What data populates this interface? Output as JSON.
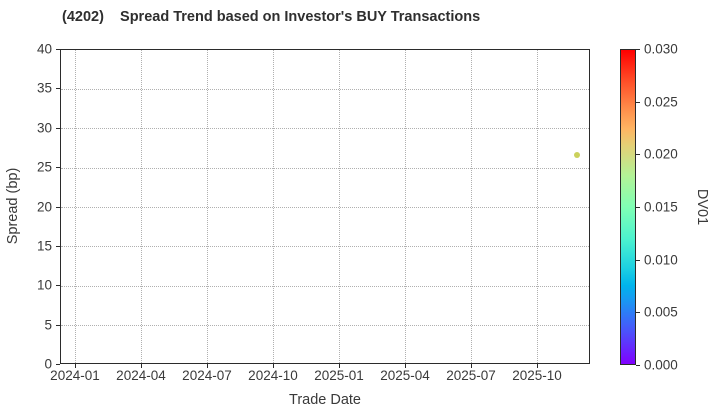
{
  "chart_data": {
    "type": "scatter",
    "title": "(4202)    Spread Trend based on Investor's BUY Transactions",
    "xlabel": "Trade Date",
    "ylabel": "Spread (bp)",
    "x_axis": {
      "tick_labels": [
        "2024-01",
        "2024-04",
        "2024-07",
        "2024-10",
        "2025-01",
        "2025-04",
        "2025-07",
        "2025-10"
      ],
      "tick_months": [
        0,
        3,
        6,
        9,
        12,
        15,
        18,
        21
      ],
      "lim_months": [
        -0.68,
        23.41
      ]
    },
    "y_axis": {
      "ticks": [
        0,
        5,
        10,
        15,
        20,
        25,
        30,
        35,
        40
      ],
      "lim": [
        0,
        40
      ]
    },
    "grid": {
      "show": true,
      "style": "dotted",
      "color": "#b0b0b0"
    },
    "legend": "none",
    "points": [
      {
        "trade_date": "2025-11",
        "x_month": 22.77,
        "spread_bp": 26.7,
        "dv01": 0.019,
        "color": "#cbd15c"
      }
    ],
    "colorbar": {
      "label": "DV01",
      "lim": [
        0.0,
        0.03
      ],
      "tick_values": [
        0.0,
        0.005,
        0.01,
        0.015,
        0.02,
        0.025,
        0.03
      ],
      "tick_labels": [
        "0.000",
        "0.005",
        "0.010",
        "0.015",
        "0.020",
        "0.025",
        "0.030"
      ],
      "colormap": "rainbow",
      "gradient_stops": [
        [
          0,
          "#8000ff"
        ],
        [
          10,
          "#4d4ffc"
        ],
        [
          20,
          "#1a96f3"
        ],
        [
          25,
          "#00b4ec"
        ],
        [
          30,
          "#1acee3"
        ],
        [
          40,
          "#4df3ce"
        ],
        [
          50,
          "#80ffb4"
        ],
        [
          60,
          "#b3f396"
        ],
        [
          70,
          "#e6ce74"
        ],
        [
          75,
          "#ffb462"
        ],
        [
          80,
          "#ff964f"
        ],
        [
          90,
          "#ff4f28"
        ],
        [
          100,
          "#ff0000"
        ]
      ]
    }
  },
  "colors": {
    "spine": "#2b2b2b",
    "text": "#3a3a3a",
    "title_text": "#2f2f2f",
    "grid": "#b0b0b0",
    "background": "#ffffff"
  }
}
